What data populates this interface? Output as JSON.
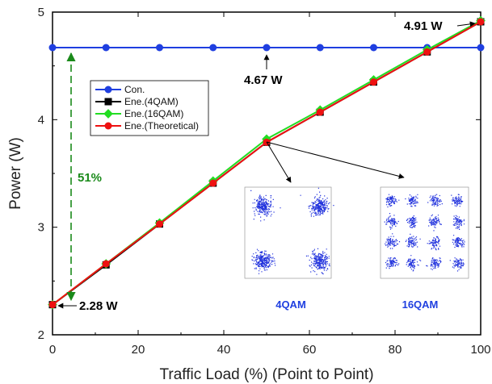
{
  "chart_data": {
    "type": "line",
    "title": "",
    "xlabel": "Traffic Load (%)  (Point to Point)",
    "ylabel": "Power (W)",
    "xlim": [
      0,
      100
    ],
    "ylim": [
      2,
      5
    ],
    "x_ticks": [
      "0",
      "20",
      "40",
      "60",
      "80",
      "100"
    ],
    "y_ticks": [
      "2",
      "3",
      "4",
      "5"
    ],
    "x": [
      0,
      12.5,
      25,
      37.5,
      50,
      62.5,
      75,
      87.5,
      100
    ],
    "series": [
      {
        "name": "Con.",
        "color": "#1f3fe0",
        "marker": "circle",
        "values": [
          4.67,
          4.67,
          4.67,
          4.67,
          4.67,
          4.67,
          4.67,
          4.67,
          4.67
        ]
      },
      {
        "name": "Ene.(4QAM)",
        "color": "#000000",
        "marker": "square",
        "values": [
          2.28,
          2.65,
          3.03,
          3.41,
          3.79,
          4.07,
          4.35,
          4.63,
          4.91
        ]
      },
      {
        "name": "Ene.(16QAM)",
        "color": "#22dd22",
        "marker": "diamond",
        "values": [
          2.28,
          2.66,
          3.04,
          3.43,
          3.82,
          4.09,
          4.37,
          4.65,
          4.92
        ]
      },
      {
        "name": "Ene.(Theoretical)",
        "color": "#ee1111",
        "marker": "circle",
        "values": [
          2.28,
          2.66,
          3.03,
          3.41,
          3.79,
          4.07,
          4.35,
          4.63,
          4.91
        ]
      }
    ],
    "legend_position": "upper-left",
    "annotations": {
      "max_label": "4.91 W",
      "con_label": "4.67 W",
      "min_label": "2.28 W",
      "saving_label": "51%",
      "saving_color": "#1a8a1a"
    },
    "insets": [
      {
        "label": "4QAM"
      },
      {
        "label": "16QAM"
      }
    ]
  }
}
